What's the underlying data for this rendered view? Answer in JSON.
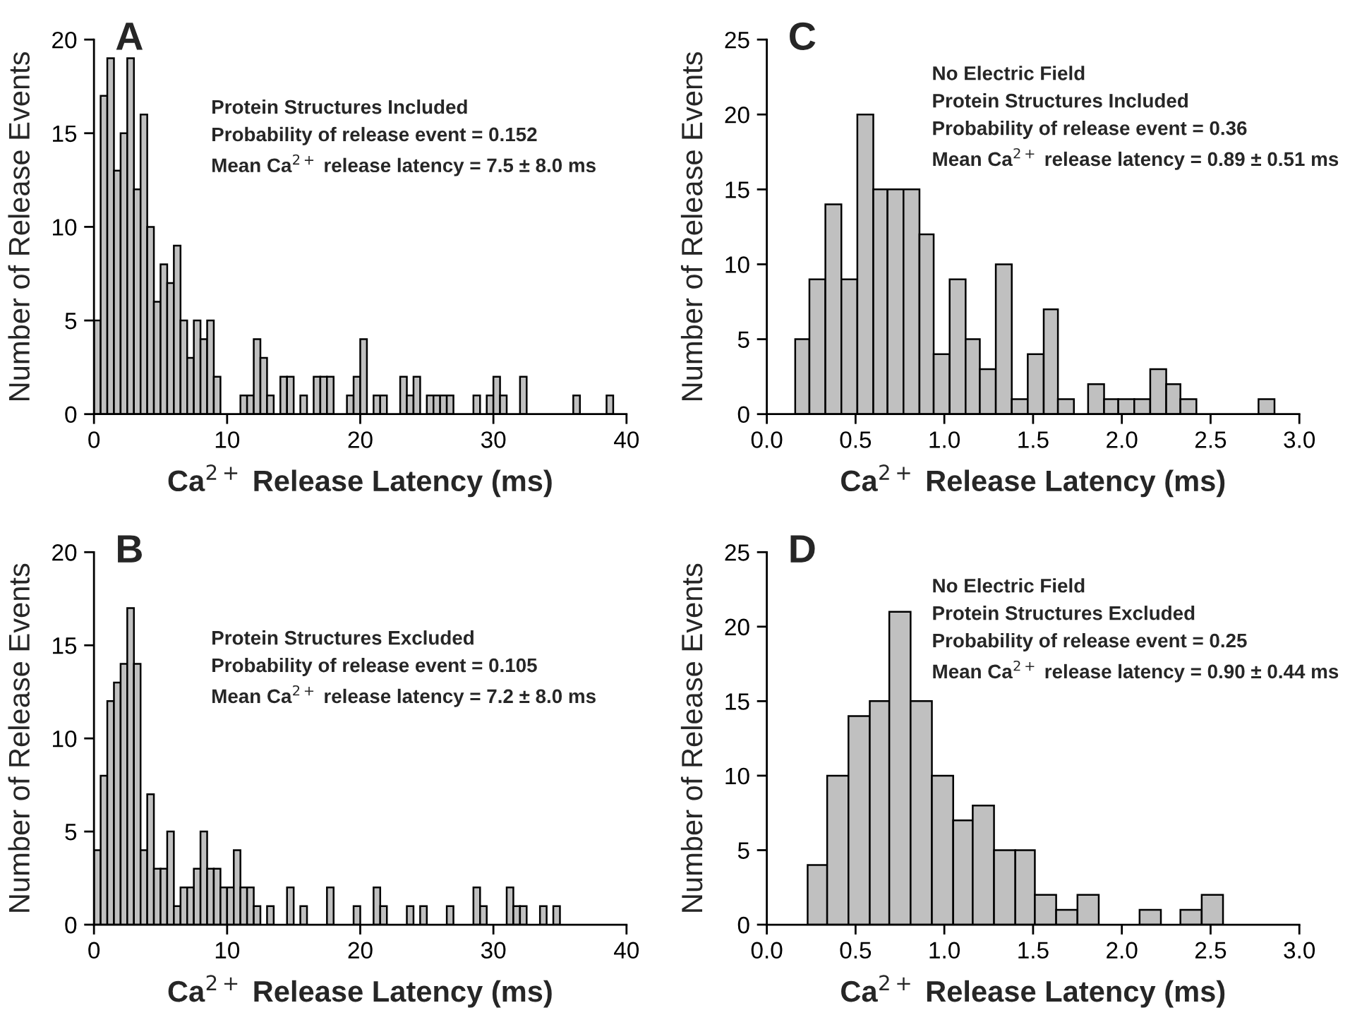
{
  "chart_data": [
    {
      "type": "histogram",
      "title": "A",
      "xlabel": "Ca$^{2+}$ Release Latency (ms)",
      "ylabel": "Number of Release Events",
      "color": "#c0c0c0",
      "annotations": [
        "Protein Structures Included",
        "Probability of release event = 0.152",
        "Mean Ca$^{2+}$ release latency = 7.5 ± 8.0 ms"
      ],
      "bins": [
        0,
        0.5,
        1,
        1.5,
        2,
        2.5,
        3,
        3.5,
        4,
        4.5,
        5,
        5.5,
        6,
        6.5,
        7,
        7.5,
        8,
        8.5,
        9,
        9.5,
        10,
        10.5,
        11,
        11.5,
        12,
        12.5,
        13,
        13.5,
        14,
        14.5,
        15,
        15.5,
        16,
        16.5,
        17,
        17.5,
        18,
        18.5,
        19,
        19.5,
        20,
        20.5,
        21,
        21.5,
        22,
        22.5,
        23,
        23.5,
        24,
        24.5,
        25,
        25.5,
        26,
        26.5,
        27,
        27.5,
        28,
        28.5,
        29,
        29.5,
        30,
        30.5,
        31,
        31.5,
        32,
        32.5,
        33,
        33.5,
        34,
        34.5,
        35,
        35.5,
        36,
        36.5,
        37,
        37.5,
        38,
        38.5,
        39,
        39.5,
        40
      ],
      "values": [
        5,
        17,
        19,
        13,
        15,
        19,
        12,
        16,
        10,
        6,
        8,
        7,
        9,
        5,
        3,
        5,
        4,
        5,
        2,
        0,
        0,
        0,
        1,
        1,
        4,
        3,
        1,
        0,
        2,
        2,
        0,
        1,
        0,
        2,
        2,
        2,
        0,
        0,
        1,
        2,
        4,
        0,
        1,
        1,
        0,
        0,
        2,
        1,
        2,
        0,
        1,
        1,
        1,
        1,
        0,
        0,
        0,
        1,
        0,
        1,
        2,
        1,
        0,
        0,
        2,
        0,
        0,
        0,
        0,
        0,
        0,
        0,
        1,
        0,
        0,
        0,
        0,
        1,
        0,
        0
      ],
      "xlim": [
        0,
        40
      ],
      "xticks": [
        0,
        10,
        20,
        30,
        40
      ],
      "ylim": [
        0,
        20
      ],
      "yticks": [
        0,
        5,
        10,
        15,
        20
      ]
    },
    {
      "type": "histogram",
      "title": "C",
      "xlabel": "Ca$^{2+}$ Release Latency (ms)",
      "ylabel": "Number of Release Events",
      "color": "#c0c0c0",
      "annotations": [
        "No Electric Field",
        "Protein Structures Included",
        "Probability of release event = 0.36",
        "Mean Ca$^{2+}$ release latency = 0.89 ± 0.51 ms"
      ],
      "bins": [
        0.16,
        0.24,
        0.33,
        0.42,
        0.51,
        0.6,
        0.68,
        0.77,
        0.86,
        0.94,
        1.03,
        1.12,
        1.2,
        1.29,
        1.38,
        1.47,
        1.56,
        1.64,
        1.73,
        1.81,
        1.9,
        1.98,
        2.07,
        2.16,
        2.25,
        2.33,
        2.42,
        2.77,
        2.86
      ],
      "values": [
        5,
        9,
        14,
        9,
        20,
        15,
        15,
        15,
        12,
        4,
        9,
        5,
        3,
        10,
        1,
        4,
        7,
        1,
        0,
        2,
        1,
        1,
        1,
        3,
        2,
        1,
        0,
        1
      ],
      "xlim": [
        0,
        3
      ],
      "xticks": [
        {
          "value": 0,
          "label": "0.0"
        },
        {
          "value": 0.5,
          "label": "0.5"
        },
        {
          "value": 1,
          "label": "1.0"
        },
        {
          "value": 1.5,
          "label": "1.5"
        },
        {
          "value": 2,
          "label": "2.0"
        },
        {
          "value": 2.5,
          "label": "2.5"
        },
        {
          "value": 3,
          "label": "3.0"
        }
      ],
      "ylim": [
        0,
        25
      ],
      "yticks": [
        0,
        5,
        10,
        15,
        20,
        25
      ]
    },
    {
      "type": "histogram",
      "title": "B",
      "xlabel": "Ca$^{2+}$ Release Latency (ms)",
      "ylabel": "Number of Release Events",
      "color": "#c0c0c0",
      "annotations": [
        "Protein Structures Excluded",
        "Probability of release event = 0.105",
        "Mean Ca$^{2+}$ release latency = 7.2 ± 8.0 ms"
      ],
      "bins": [
        0,
        0.5,
        1,
        1.5,
        2,
        2.5,
        3,
        3.5,
        4,
        4.5,
        5,
        5.5,
        6,
        6.5,
        7,
        7.5,
        8,
        8.5,
        9,
        9.5,
        10,
        10.5,
        11,
        11.5,
        12,
        12.5,
        13,
        13.5,
        14,
        14.5,
        15,
        15.5,
        16,
        16.5,
        17,
        17.5,
        18,
        18.5,
        19,
        19.5,
        20,
        20.5,
        21,
        21.5,
        22,
        22.5,
        23,
        23.5,
        24,
        24.5,
        25,
        25.5,
        26,
        26.5,
        27,
        27.5,
        28,
        28.5,
        29,
        29.5,
        30,
        30.5,
        31,
        31.5,
        32,
        32.5,
        33,
        33.5,
        34,
        34.5,
        35,
        35.5,
        36,
        36.5,
        37,
        37.5,
        38,
        38.5,
        39,
        39.5,
        40
      ],
      "values": [
        4,
        8,
        12,
        13,
        14,
        17,
        14,
        4,
        7,
        3,
        3,
        5,
        1,
        2,
        2,
        3,
        5,
        3,
        3,
        2,
        2,
        4,
        2,
        2,
        1,
        0,
        1,
        0,
        0,
        2,
        0,
        1,
        0,
        0,
        0,
        2,
        0,
        0,
        0,
        1,
        0,
        0,
        2,
        1,
        0,
        0,
        0,
        1,
        0,
        1,
        0,
        0,
        0,
        1,
        0,
        0,
        0,
        2,
        1,
        0,
        0,
        0,
        2,
        1,
        1,
        0,
        0,
        1,
        0,
        1,
        0,
        0,
        0,
        0,
        0,
        0,
        0,
        0,
        0,
        0
      ],
      "xlim": [
        0,
        40
      ],
      "xticks": [
        0,
        10,
        20,
        30,
        40
      ],
      "ylim": [
        0,
        20
      ],
      "yticks": [
        0,
        5,
        10,
        15,
        20
      ]
    },
    {
      "type": "histogram",
      "title": "D",
      "xlabel": "Ca$^{2+}$ Release Latency (ms)",
      "ylabel": "Number of Release Events",
      "color": "#c0c0c0",
      "annotations": [
        "No Electric Field",
        "Protein Structures Excluded",
        "Probability of release event = 0.25",
        "Mean Ca$^{2+}$ release latency = 0.90 ± 0.44 ms"
      ],
      "bins": [
        0.23,
        0.34,
        0.46,
        0.58,
        0.69,
        0.81,
        0.93,
        1.05,
        1.16,
        1.28,
        1.4,
        1.51,
        1.63,
        1.75,
        1.87,
        2.1,
        2.22,
        2.33,
        2.45,
        2.57
      ],
      "values": [
        4,
        10,
        14,
        15,
        21,
        15,
        10,
        7,
        8,
        5,
        5,
        2,
        1,
        2,
        0,
        1,
        0,
        1,
        2
      ],
      "xlim": [
        0,
        3
      ],
      "xticks": [
        {
          "value": 0,
          "label": "0.0"
        },
        {
          "value": 0.5,
          "label": "0.5"
        },
        {
          "value": 1,
          "label": "1.0"
        },
        {
          "value": 1.5,
          "label": "1.5"
        },
        {
          "value": 2,
          "label": "2.0"
        },
        {
          "value": 2.5,
          "label": "2.5"
        },
        {
          "value": 3,
          "label": "3.0"
        }
      ],
      "ylim": [
        0,
        25
      ],
      "yticks": [
        0,
        5,
        10,
        15,
        20,
        25
      ]
    }
  ]
}
